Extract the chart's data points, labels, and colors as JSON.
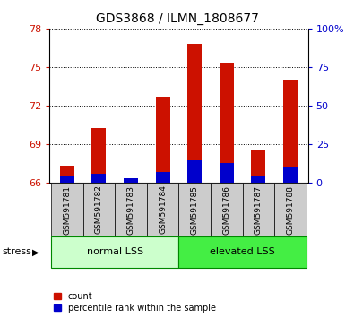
{
  "title": "GDS3868 / ILMN_1808677",
  "categories": [
    "GSM591781",
    "GSM591782",
    "GSM591783",
    "GSM591784",
    "GSM591785",
    "GSM591786",
    "GSM591787",
    "GSM591788"
  ],
  "bar_base": 66,
  "red_tops": [
    67.3,
    70.2,
    66.05,
    72.7,
    76.8,
    75.3,
    68.5,
    74.0
  ],
  "blue_tops": [
    66.45,
    66.65,
    66.35,
    66.8,
    67.7,
    67.5,
    66.5,
    67.2
  ],
  "blue_bases": [
    66.0,
    66.0,
    66.0,
    66.0,
    66.0,
    66.0,
    66.0,
    66.0
  ],
  "ylim_left": [
    66,
    78
  ],
  "yticks_left": [
    66,
    69,
    72,
    75,
    78
  ],
  "ylim_right": [
    0,
    100
  ],
  "yticks_right": [
    0,
    25,
    50,
    75,
    100
  ],
  "ytick_labels_right": [
    "0",
    "25",
    "50",
    "75",
    "100%"
  ],
  "red_color": "#cc1100",
  "blue_color": "#0000cc",
  "bar_width": 0.45,
  "group1_label": "normal LSS",
  "group2_label": "elevated LSS",
  "group1_color": "#ccffcc",
  "group2_color": "#44ee44",
  "stress_label": "stress",
  "legend_red": "count",
  "legend_blue": "percentile rank within the sample",
  "tick_area_bg": "#cccccc",
  "red_label_color": "#cc1100",
  "blue_label_color": "#0000cc"
}
